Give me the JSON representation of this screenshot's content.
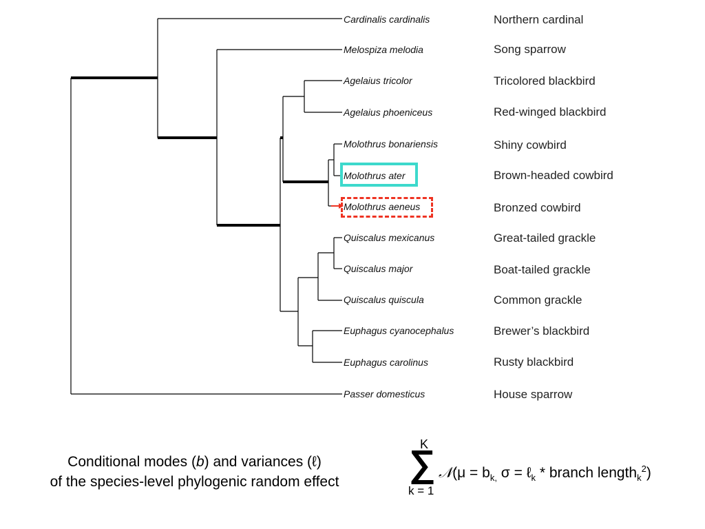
{
  "taxa": [
    {
      "scientific": "Cardinalis cardinalis",
      "common": "Northern cardinal"
    },
    {
      "scientific": "Melospiza melodia",
      "common": "Song sparrow"
    },
    {
      "scientific": "Agelaius tricolor",
      "common": "Tricolored blackbird"
    },
    {
      "scientific": "Agelaius phoeniceus",
      "common": "Red-winged blackbird"
    },
    {
      "scientific": "Molothrus bonariensis",
      "common": "Shiny cowbird"
    },
    {
      "scientific": "Molothrus ater",
      "common": "Brown-headed cowbird"
    },
    {
      "scientific": "Molothrus aeneus",
      "common": "Bronzed cowbird"
    },
    {
      "scientific": "Quiscalus mexicanus",
      "common": "Great-tailed grackle"
    },
    {
      "scientific": "Quiscalus major",
      "common": "Boat-tailed grackle"
    },
    {
      "scientific": "Quiscalus quiscula",
      "common": "Common grackle"
    },
    {
      "scientific": "Euphagus cyanocephalus",
      "common": "Brewer’s blackbird"
    },
    {
      "scientific": "Euphagus carolinus",
      "common": "Rusty blackbird"
    },
    {
      "scientific": "Passer domesticus",
      "common": "House sparrow"
    }
  ],
  "highlight_colors": {
    "solid": "#3dd9cc",
    "dashed": "#ee3322"
  },
  "caption": {
    "line1_before": "Conditional modes (",
    "line1_b": "b",
    "line1_mid": ") and variances (",
    "line1_l": "ℓ",
    "line1_after": ")",
    "line2": "of the species-level phylogenic random effect"
  },
  "formula": {
    "upper": "K",
    "sigma": "∑",
    "lower": "k = 1",
    "normal_symbol": "𝒩",
    "open": "(μ = b",
    "sub_k1": "k,",
    "sigma_eq": " σ = ℓ",
    "sub_k2": "k",
    "times": " * branch length",
    "sub_k3": "k",
    "sup_2": "2",
    "close": ")"
  }
}
